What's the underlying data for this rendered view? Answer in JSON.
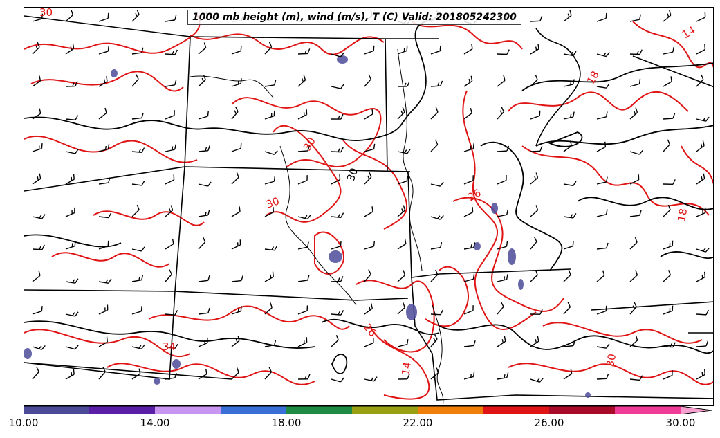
{
  "title": "1000 mb height (m), wind (m/s), T (C) Valid: 201805242300",
  "colorbar": {
    "colors": [
      "#4b4b9a",
      "#5a1fa6",
      "#c896f0",
      "#3a6fd8",
      "#1f8a43",
      "#9aa014",
      "#f07f0a",
      "#e01414",
      "#a80a28",
      "#f03c96",
      "#f7a0d0"
    ],
    "tick_labels": [
      "10.00",
      "14.00",
      "18.00",
      "22.00",
      "26.00",
      "30.00"
    ]
  },
  "contour_labels": [
    {
      "text": "30",
      "color": "#e01414"
    },
    {
      "text": "30",
      "color": "#e01414"
    },
    {
      "text": "30",
      "color": "#000000"
    },
    {
      "text": "30",
      "color": "#e01414"
    },
    {
      "text": "26",
      "color": "#e01414"
    },
    {
      "text": "26",
      "color": "#e01414"
    },
    {
      "text": "34",
      "color": "#e01414"
    },
    {
      "text": "18",
      "color": "#e01414"
    },
    {
      "text": "14",
      "color": "#e01414"
    },
    {
      "text": "18",
      "color": "#e01414"
    },
    {
      "text": "14",
      "color": "#e01414"
    },
    {
      "text": "30",
      "color": "#e01414"
    }
  ]
}
